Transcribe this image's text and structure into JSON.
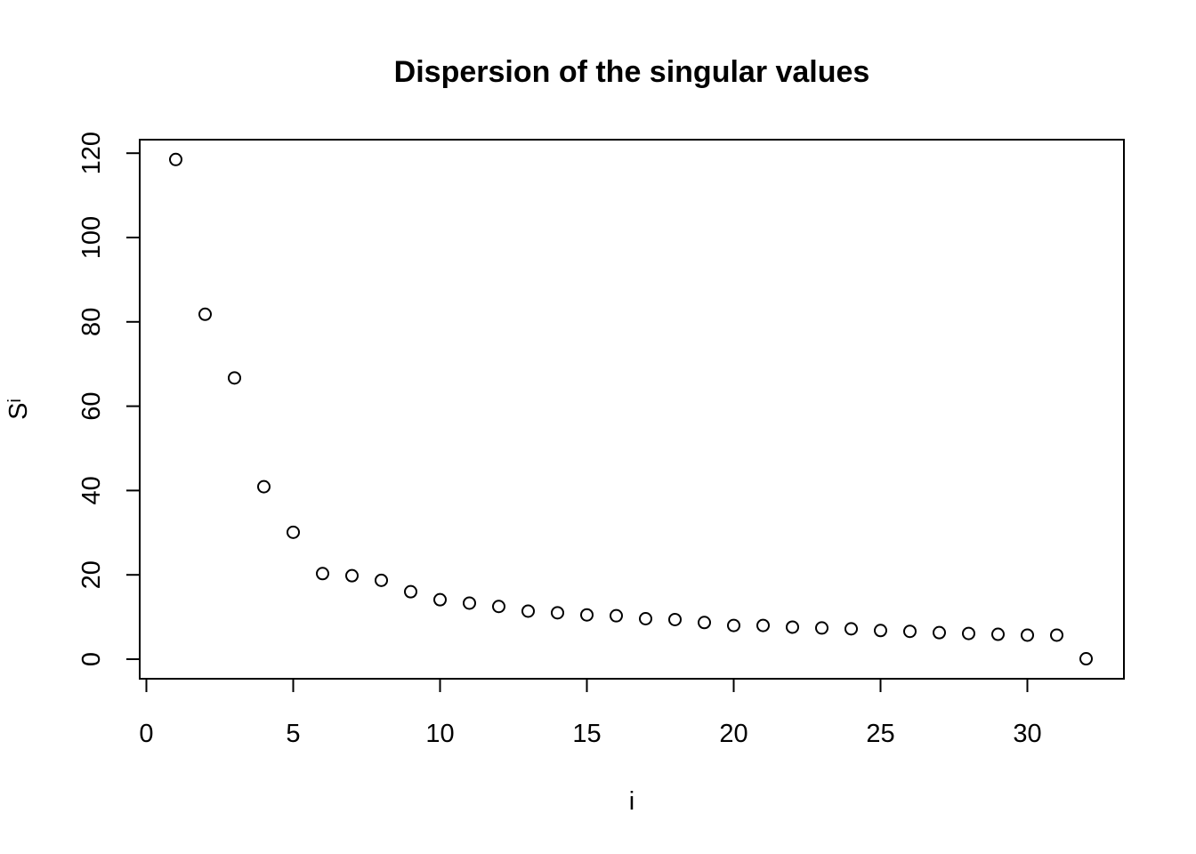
{
  "chart_data": {
    "type": "scatter",
    "title": "Dispersion of the singular values",
    "xlabel": "i",
    "ylabel": "S",
    "ylabel_subscript": "i",
    "xlim": [
      0,
      32
    ],
    "ylim": [
      0,
      120
    ],
    "xticks": [
      0,
      5,
      10,
      15,
      20,
      25,
      30
    ],
    "yticks": [
      0,
      20,
      40,
      60,
      80,
      100,
      120
    ],
    "marker": "open-circle",
    "grid": false,
    "series": [
      {
        "name": "singular values",
        "x": [
          1,
          2,
          3,
          4,
          5,
          6,
          7,
          8,
          9,
          10,
          11,
          12,
          13,
          14,
          15,
          16,
          17,
          18,
          19,
          20,
          21,
          22,
          23,
          24,
          25,
          26,
          27,
          28,
          29,
          30,
          31,
          32
        ],
        "values": [
          118.5,
          81.8,
          66.7,
          40.9,
          30.1,
          20.3,
          19.8,
          18.7,
          16.0,
          14.1,
          13.3,
          12.5,
          11.4,
          11.0,
          10.5,
          10.3,
          9.6,
          9.4,
          8.7,
          8.0,
          8.0,
          7.6,
          7.4,
          7.2,
          6.8,
          6.6,
          6.3,
          6.1,
          5.9,
          5.7,
          5.7,
          0.1
        ]
      }
    ]
  }
}
